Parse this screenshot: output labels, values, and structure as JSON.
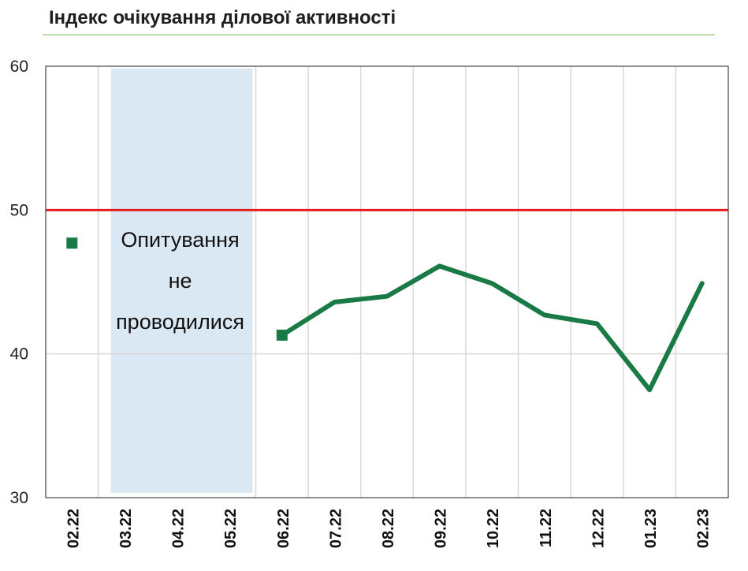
{
  "title": "Індекс очікування ділової активності",
  "colors": {
    "line": "#1a7a45",
    "threshold": "#e41e1e",
    "shade": "#dae8f3",
    "grid": "#d9d9d9",
    "title_rule": "#a9d18e"
  },
  "chart_data": {
    "type": "line",
    "title": "Індекс очікування ділової активності",
    "xlabel": "",
    "ylabel": "",
    "categories": [
      "02.22",
      "03.22",
      "04.22",
      "05.22",
      "06.22",
      "07.22",
      "08.22",
      "09.22",
      "10.22",
      "11.22",
      "12.22",
      "01.23",
      "02.23"
    ],
    "ylim": [
      30,
      60
    ],
    "yticks": [
      30,
      40,
      50,
      60
    ],
    "series": [
      {
        "values": [
          null,
          null,
          null,
          null,
          41.3,
          43.6,
          44.0,
          46.1,
          44.9,
          42.7,
          42.1,
          37.5,
          44.9
        ]
      }
    ],
    "point_markers": [
      {
        "category": "02.22",
        "value": 47.7
      },
      {
        "category": "06.22",
        "value": 41.3
      }
    ],
    "threshold": 50,
    "shaded_period": {
      "from": "03.22",
      "to": "05.22"
    },
    "annotation": [
      "Опитування",
      "не",
      "проводилися"
    ],
    "grid": true,
    "legend": "none"
  }
}
